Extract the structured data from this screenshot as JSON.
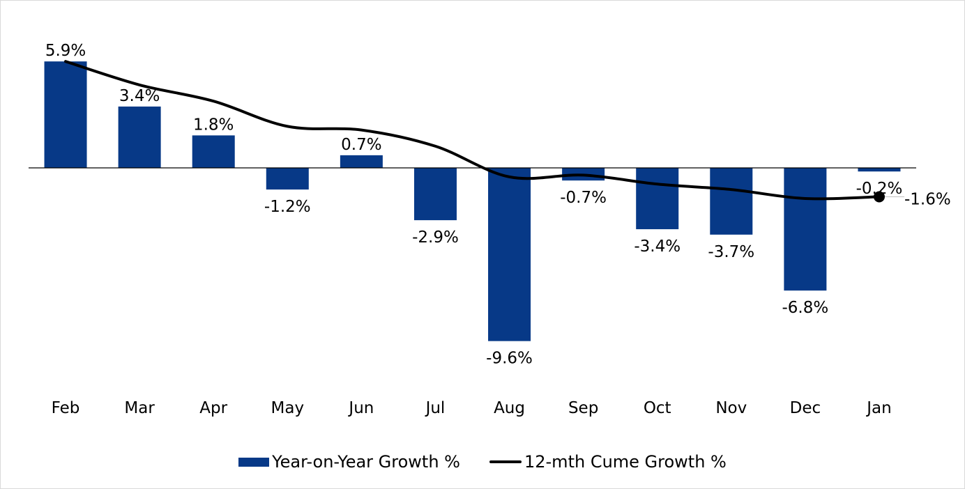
{
  "chart_data": {
    "type": "bar",
    "categories": [
      "Feb",
      "Mar",
      "Apr",
      "May",
      "Jun",
      "Jul",
      "Aug",
      "Sep",
      "Oct",
      "Nov",
      "Dec",
      "Jan"
    ],
    "series": [
      {
        "name": "Year-on-Year Growth %",
        "type": "bar",
        "color": "#073987",
        "values": [
          5.9,
          3.4,
          1.8,
          -1.2,
          0.7,
          -2.9,
          -9.6,
          -0.7,
          -3.4,
          -3.7,
          -6.8,
          -0.2
        ],
        "labels": [
          "5.9%",
          "3.4%",
          "1.8%",
          "-1.2%",
          "0.7%",
          "-2.9%",
          "-9.6%",
          "-0.7%",
          "-3.4%",
          "-3.7%",
          "-6.8%",
          "-0.2%"
        ]
      },
      {
        "name": "12-mth Cume Growth %",
        "type": "line",
        "color": "#000000",
        "values": [
          5.9,
          4.6,
          3.7,
          2.3,
          2.1,
          1.2,
          -0.5,
          -0.4,
          -0.9,
          -1.2,
          -1.7,
          -1.6
        ],
        "last_label": "-1.6%"
      }
    ],
    "ylim": [
      -11.5,
      6.8
    ],
    "title": "",
    "xlabel": "",
    "ylabel": "",
    "grid": false,
    "legend_position": "bottom"
  }
}
